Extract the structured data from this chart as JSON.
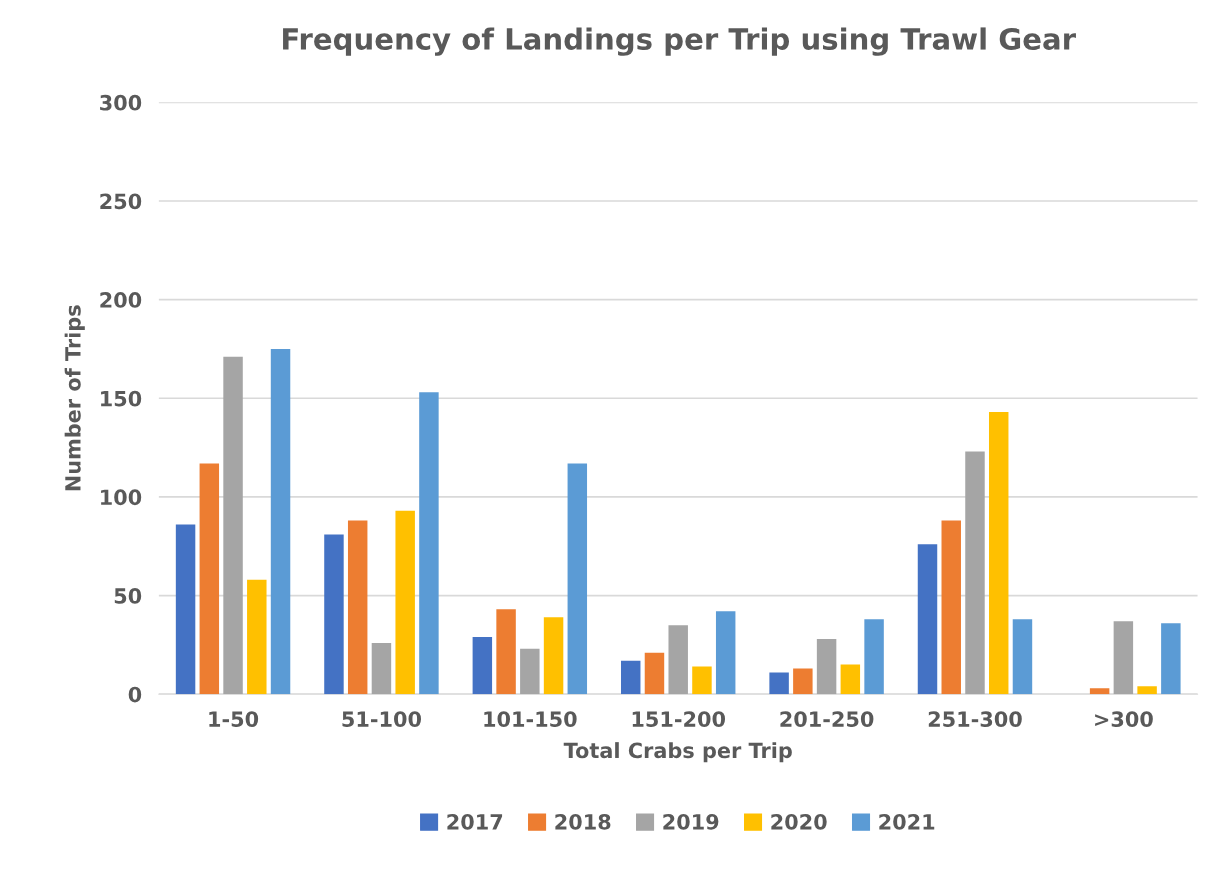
{
  "chart_data": {
    "type": "bar",
    "title": "Frequency of Landings per Trip using Trawl Gear",
    "xlabel": "Total Crabs per Trip",
    "ylabel": "Number of Trips",
    "categories": [
      "1-50",
      "51-100",
      "101-150",
      "151-200",
      "201-250",
      "251-300",
      ">300"
    ],
    "series": [
      {
        "name": "2017",
        "color": "#4472c4",
        "values": [
          86,
          81,
          29,
          17,
          11,
          76,
          0
        ]
      },
      {
        "name": "2018",
        "color": "#ed7d31",
        "values": [
          117,
          88,
          43,
          21,
          13,
          88,
          3
        ]
      },
      {
        "name": "2019",
        "color": "#a5a5a5",
        "values": [
          171,
          26,
          23,
          35,
          28,
          123,
          37
        ]
      },
      {
        "name": "2020",
        "color": "#ffc000",
        "values": [
          58,
          93,
          39,
          14,
          15,
          143,
          4
        ]
      },
      {
        "name": "2021",
        "color": "#5b9bd5",
        "values": [
          175,
          153,
          117,
          42,
          38,
          38,
          36
        ]
      }
    ],
    "ylim": [
      0,
      300
    ],
    "yticks": [
      0,
      50,
      100,
      150,
      200,
      250,
      300
    ],
    "grid": "y",
    "legend": "bottom"
  }
}
